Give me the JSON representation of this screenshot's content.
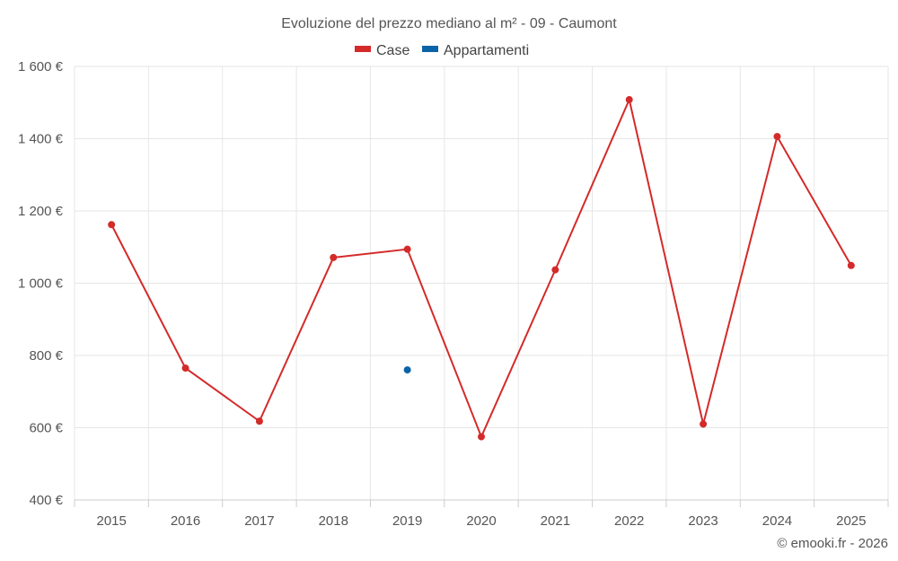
{
  "chart_data": {
    "type": "line",
    "title": "Evoluzione del prezzo mediano al m² - 09 - Caumont",
    "categories": [
      "2015",
      "2016",
      "2017",
      "2018",
      "2019",
      "2020",
      "2021",
      "2022",
      "2023",
      "2024",
      "2025"
    ],
    "y_ticks": [
      "1 600 €",
      "1 400 €",
      "1 200 €",
      "1 000 €",
      "800 €",
      "600 €",
      "400 €"
    ],
    "ylim": [
      400,
      1600
    ],
    "y_tick_values": [
      1600,
      1400,
      1200,
      1000,
      800,
      600,
      400
    ],
    "grid": true,
    "legend_position": "top",
    "series": [
      {
        "name": "Case",
        "color": "#d42a2a",
        "values": [
          1162,
          765,
          618,
          1071,
          1094,
          575,
          1037,
          1508,
          610,
          1406,
          1049
        ]
      },
      {
        "name": "Appartamenti",
        "color": "#0b63a8",
        "values": [
          null,
          null,
          null,
          null,
          760,
          null,
          null,
          null,
          null,
          null,
          null
        ]
      }
    ]
  },
  "credit": "© emooki.fr - 2026"
}
